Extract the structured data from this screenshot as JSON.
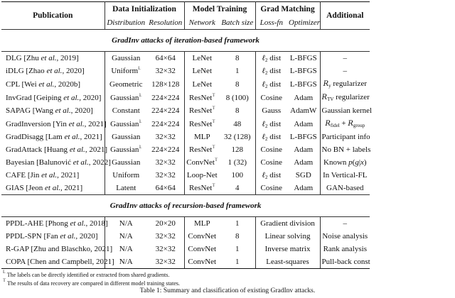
{
  "header": {
    "publication": "Publication",
    "groups": [
      "Data Initialization",
      "Model Training",
      "Grad Matching",
      "Additional"
    ],
    "subs": [
      "Distribution",
      "Resolution",
      "Network",
      "Batch size",
      "Loss-fn",
      "Optimizer"
    ]
  },
  "sections": [
    {
      "title": "GradInv attacks of iteration-based framework",
      "rows": [
        {
          "pub": [
            {
              "t": "DLG [Zhu "
            },
            {
              "i": "et al."
            },
            {
              "t": ", 2019]"
            }
          ],
          "cells": [
            [
              {
                "t": "Gaussian"
              }
            ],
            [
              {
                "t": "64×64"
              }
            ],
            [
              {
                "t": "LeNet"
              }
            ],
            [
              {
                "t": "8"
              }
            ],
            [
              {
                "m": "ℓ"
              },
              {
                "sub": "2"
              },
              {
                "t": " dist"
              }
            ],
            [
              {
                "t": "L-BFGS"
              }
            ],
            [
              {
                "t": "–"
              }
            ]
          ]
        },
        {
          "pub": [
            {
              "t": "iDLG [Zhao "
            },
            {
              "i": "et al."
            },
            {
              "t": ", 2020]"
            }
          ],
          "cells": [
            [
              {
                "t": "Uniform"
              },
              {
                "sup": "𝕃"
              }
            ],
            [
              {
                "t": "32×32"
              }
            ],
            [
              {
                "t": "LeNet"
              }
            ],
            [
              {
                "t": "1"
              }
            ],
            [
              {
                "m": "ℓ"
              },
              {
                "sub": "2"
              },
              {
                "t": " dist"
              }
            ],
            [
              {
                "t": "L-BFGS"
              }
            ],
            [
              {
                "t": "–"
              }
            ]
          ]
        },
        {
          "pub": [
            {
              "t": "CPL [Wei "
            },
            {
              "i": "et al."
            },
            {
              "t": ", 2020b]"
            }
          ],
          "cells": [
            [
              {
                "t": "Geometric"
              }
            ],
            [
              {
                "t": "128×128"
              }
            ],
            [
              {
                "t": "LeNet"
              }
            ],
            [
              {
                "t": "8"
              }
            ],
            [
              {
                "m": "ℓ"
              },
              {
                "sub": "2"
              },
              {
                "t": " dist"
              }
            ],
            [
              {
                "t": "L-BFGS"
              }
            ],
            [
              {
                "c": "R"
              },
              {
                "sub": "y"
              },
              {
                "t": " regularizer"
              }
            ]
          ]
        },
        {
          "pub": [
            {
              "t": "InvGrad [Geiping "
            },
            {
              "i": "et al."
            },
            {
              "t": ", 2020]"
            }
          ],
          "cells": [
            [
              {
                "t": "Gaussian"
              },
              {
                "sup": "𝕃"
              }
            ],
            [
              {
                "t": "224×224"
              }
            ],
            [
              {
                "t": "ResNet"
              },
              {
                "sup": "𝕋"
              }
            ],
            [
              {
                "t": "8 (100)"
              }
            ],
            [
              {
                "t": "Cosine"
              }
            ],
            [
              {
                "t": "Adam"
              }
            ],
            [
              {
                "c": "R"
              },
              {
                "sub": "TV"
              },
              {
                "t": " regularizer"
              }
            ]
          ]
        },
        {
          "pub": [
            {
              "t": "SAPAG [Wang "
            },
            {
              "i": "et al."
            },
            {
              "t": ", 2020]"
            }
          ],
          "cells": [
            [
              {
                "t": "Constant"
              }
            ],
            [
              {
                "t": "224×224"
              }
            ],
            [
              {
                "t": "ResNet"
              },
              {
                "sup": "𝕋"
              }
            ],
            [
              {
                "t": "8"
              }
            ],
            [
              {
                "t": "Gauss"
              }
            ],
            [
              {
                "t": "AdamW"
              }
            ],
            [
              {
                "t": "Gaussian kernel"
              }
            ]
          ]
        },
        {
          "pub": [
            {
              "t": "GradInversion [Yin "
            },
            {
              "i": "et al."
            },
            {
              "t": ", 2021]"
            }
          ],
          "cells": [
            [
              {
                "t": "Gaussian"
              },
              {
                "sup": "𝕃"
              }
            ],
            [
              {
                "t": "224×224"
              }
            ],
            [
              {
                "t": "ResNet"
              },
              {
                "sup": "𝕋"
              }
            ],
            [
              {
                "t": "48"
              }
            ],
            [
              {
                "m": "ℓ"
              },
              {
                "sub": "2"
              },
              {
                "t": " dist"
              }
            ],
            [
              {
                "t": "Adam"
              }
            ],
            [
              {
                "c": "R"
              },
              {
                "sub": "fidel"
              },
              {
                "t": " + "
              },
              {
                "c": "R"
              },
              {
                "sub": "group"
              }
            ]
          ]
        },
        {
          "pub": [
            {
              "t": "GradDisagg [Lam "
            },
            {
              "i": "et al."
            },
            {
              "t": ", 2021]"
            }
          ],
          "cells": [
            [
              {
                "t": "Gaussian"
              }
            ],
            [
              {
                "t": "32×32"
              }
            ],
            [
              {
                "t": "MLP"
              }
            ],
            [
              {
                "t": "32 (128)"
              }
            ],
            [
              {
                "m": "ℓ"
              },
              {
                "sub": "2"
              },
              {
                "t": " dist"
              }
            ],
            [
              {
                "t": "L-BFGS"
              }
            ],
            [
              {
                "t": "Participant info"
              }
            ]
          ]
        },
        {
          "pub": [
            {
              "t": "GradAttack [Huang "
            },
            {
              "i": "et al."
            },
            {
              "t": ", 2021]"
            }
          ],
          "cells": [
            [
              {
                "t": "Gaussian"
              },
              {
                "sup": "𝕃"
              }
            ],
            [
              {
                "t": "224×224"
              }
            ],
            [
              {
                "t": "ResNet"
              },
              {
                "sup": "𝕋"
              }
            ],
            [
              {
                "t": "128"
              }
            ],
            [
              {
                "t": "Cosine"
              }
            ],
            [
              {
                "t": "Adam"
              }
            ],
            [
              {
                "t": "No BN + labels"
              }
            ]
          ]
        },
        {
          "pub": [
            {
              "t": "Bayesian [Balunović "
            },
            {
              "i": "et al."
            },
            {
              "t": ", 2022]"
            }
          ],
          "cells": [
            [
              {
                "t": "Gaussian"
              }
            ],
            [
              {
                "t": "32×32"
              }
            ],
            [
              {
                "t": "ConvNet"
              },
              {
                "sup": "𝕋"
              }
            ],
            [
              {
                "t": "1 (32)"
              }
            ],
            [
              {
                "t": "Cosine"
              }
            ],
            [
              {
                "t": "Adam"
              }
            ],
            [
              {
                "t": "Known "
              },
              {
                "m": "p"
              },
              {
                "t": "("
              },
              {
                "m": "g"
              },
              {
                "t": "|"
              },
              {
                "m": "x"
              },
              {
                "t": ")"
              }
            ]
          ]
        },
        {
          "pub": [
            {
              "t": "CAFE [Jin "
            },
            {
              "i": "et al."
            },
            {
              "t": ", 2021]"
            }
          ],
          "cells": [
            [
              {
                "t": "Uniform"
              }
            ],
            [
              {
                "t": "32×32"
              }
            ],
            [
              {
                "t": "Loop-Net"
              }
            ],
            [
              {
                "t": "100"
              }
            ],
            [
              {
                "m": "ℓ"
              },
              {
                "sub": "2"
              },
              {
                "t": " dist"
              }
            ],
            [
              {
                "t": "SGD"
              }
            ],
            [
              {
                "t": "In Vertical-FL"
              }
            ]
          ]
        },
        {
          "pub": [
            {
              "t": "GIAS [Jeon "
            },
            {
              "i": "et al."
            },
            {
              "t": ", 2021]"
            }
          ],
          "cells": [
            [
              {
                "t": "Latent"
              }
            ],
            [
              {
                "t": "64×64"
              }
            ],
            [
              {
                "t": "ResNet"
              },
              {
                "sup": "𝕋"
              }
            ],
            [
              {
                "t": "4"
              }
            ],
            [
              {
                "t": "Cosine"
              }
            ],
            [
              {
                "t": "Adam"
              }
            ],
            [
              {
                "t": "GAN-based"
              }
            ]
          ]
        }
      ]
    },
    {
      "title": "GradInv attacks of recursion-based framework",
      "rows": [
        {
          "pub": [
            {
              "t": "PPDL-AHE [Phong "
            },
            {
              "i": "et al."
            },
            {
              "t": ", 2018]"
            }
          ],
          "cells": [
            [
              {
                "t": "N/A"
              }
            ],
            [
              {
                "t": "20×20"
              }
            ],
            [
              {
                "t": "MLP"
              }
            ],
            [
              {
                "t": "1"
              }
            ],
            [
              {
                "t": "Gradient division"
              }
            ],
            [
              {
                "t": "–"
              }
            ]
          ]
        },
        {
          "pub": [
            {
              "t": "PPDL-SPN [Fan "
            },
            {
              "i": "et al."
            },
            {
              "t": ", 2020]"
            }
          ],
          "cells": [
            [
              {
                "t": "N/A"
              }
            ],
            [
              {
                "t": "32×32"
              }
            ],
            [
              {
                "t": "ConvNet"
              }
            ],
            [
              {
                "t": "8"
              }
            ],
            [
              {
                "t": "Linear solving"
              }
            ],
            [
              {
                "t": "Noise analysis"
              }
            ]
          ]
        },
        {
          "pub": [
            {
              "t": "R-GAP [Zhu and Blaschko, 2021]"
            }
          ],
          "cells": [
            [
              {
                "t": "N/A"
              }
            ],
            [
              {
                "t": "32×32"
              }
            ],
            [
              {
                "t": "ConvNet"
              }
            ],
            [
              {
                "t": "1"
              }
            ],
            [
              {
                "t": "Inverse matrix"
              }
            ],
            [
              {
                "t": "Rank analysis"
              }
            ]
          ]
        },
        {
          "pub": [
            {
              "t": "COPA [Chen and Campbell, 2021]"
            }
          ],
          "cells": [
            [
              {
                "t": "N/A"
              }
            ],
            [
              {
                "t": "32×32"
              }
            ],
            [
              {
                "t": "ConvNet"
              }
            ],
            [
              {
                "t": "1"
              }
            ],
            [
              {
                "t": "Least-squares"
              }
            ],
            [
              {
                "t": "Pull-back const"
              }
            ]
          ]
        }
      ]
    }
  ],
  "footnotes": [
    {
      "mark": "𝕃",
      "text": "The labels can be directly identified or extracted from shared gradients."
    },
    {
      "mark": "𝕋",
      "text": "The results of data recovery are compared in different model training states."
    }
  ],
  "caption": "Table 1: Summary and classification of existing GradInv attacks."
}
